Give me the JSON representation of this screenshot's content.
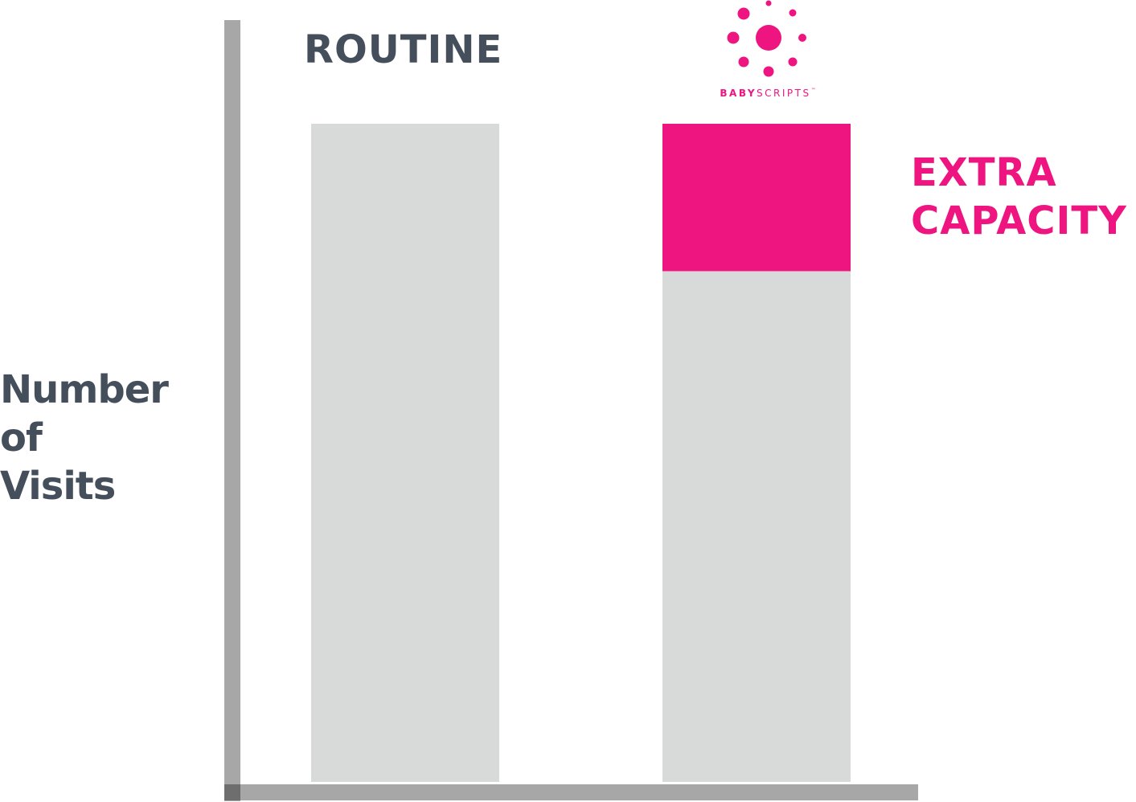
{
  "chart_data": {
    "type": "bar",
    "categories": [
      "ROUTINE",
      ""
    ],
    "series": [
      {
        "values": [
          100,
          77.6
        ]
      },
      {
        "values": [
          0,
          22.4
        ]
      }
    ],
    "ylabel": "Number of Visits",
    "ylim": [
      0,
      100
    ],
    "grid": false,
    "annotations": [
      "EXTRA",
      "CAPACITY"
    ]
  },
  "labels": {
    "ylabel_lines": [
      "Number",
      "of",
      "Visits"
    ],
    "annotation_lines": [
      "EXTRA",
      "CAPACITY"
    ]
  },
  "logo": {
    "text_bold": "BABY",
    "text_regular": "SCRIPTS",
    "trademark": "™"
  },
  "colors": {
    "bar_base": "#d8d9d9",
    "bar_extra": "#ee1580",
    "axis": "#a7a7a7",
    "axis_corner": "#6e6e6e",
    "text_dark": "#454f5c",
    "accent": "#ee1580"
  }
}
